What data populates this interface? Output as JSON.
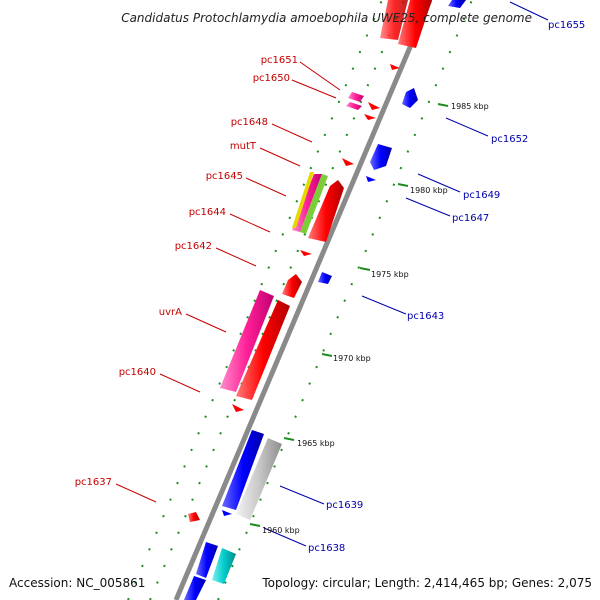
{
  "title": "Candidatus Protochlamydia amoebophila UWE25, complete genome",
  "accession": "Accession: NC_005861",
  "topology": "Topology: circular; Length: 2,414,465 bp; Genes: 2,075",
  "colors": {
    "reverse_strand_gene": "#ff0000",
    "reverse_strand_pink": "#ff2a9a",
    "forward_strand_gene": "#0000ff",
    "forward_strand_gray": "#c8c8c8",
    "forward_strand_cyan": "#00cccc",
    "label_reverse": "#c40000",
    "label_forward": "#0000aa",
    "tick_green": "#1e8c1e",
    "axis": "#8a8a8a"
  },
  "kbp_ticks": [
    "1985 kbp",
    "1980 kbp",
    "1975 kbp",
    "1970 kbp",
    "1965 kbp",
    "1960 kbp"
  ],
  "reverse_labels": [
    "pc1651",
    "pc1650",
    "pc1648",
    "mutT",
    "pc1645",
    "pc1644",
    "pc1642",
    "uvrA",
    "pc1640",
    "pc1637"
  ],
  "forward_labels": [
    "pc1655",
    "pc1652",
    "pc1649",
    "pc1647",
    "pc1643",
    "pc1639",
    "pc1638"
  ]
}
